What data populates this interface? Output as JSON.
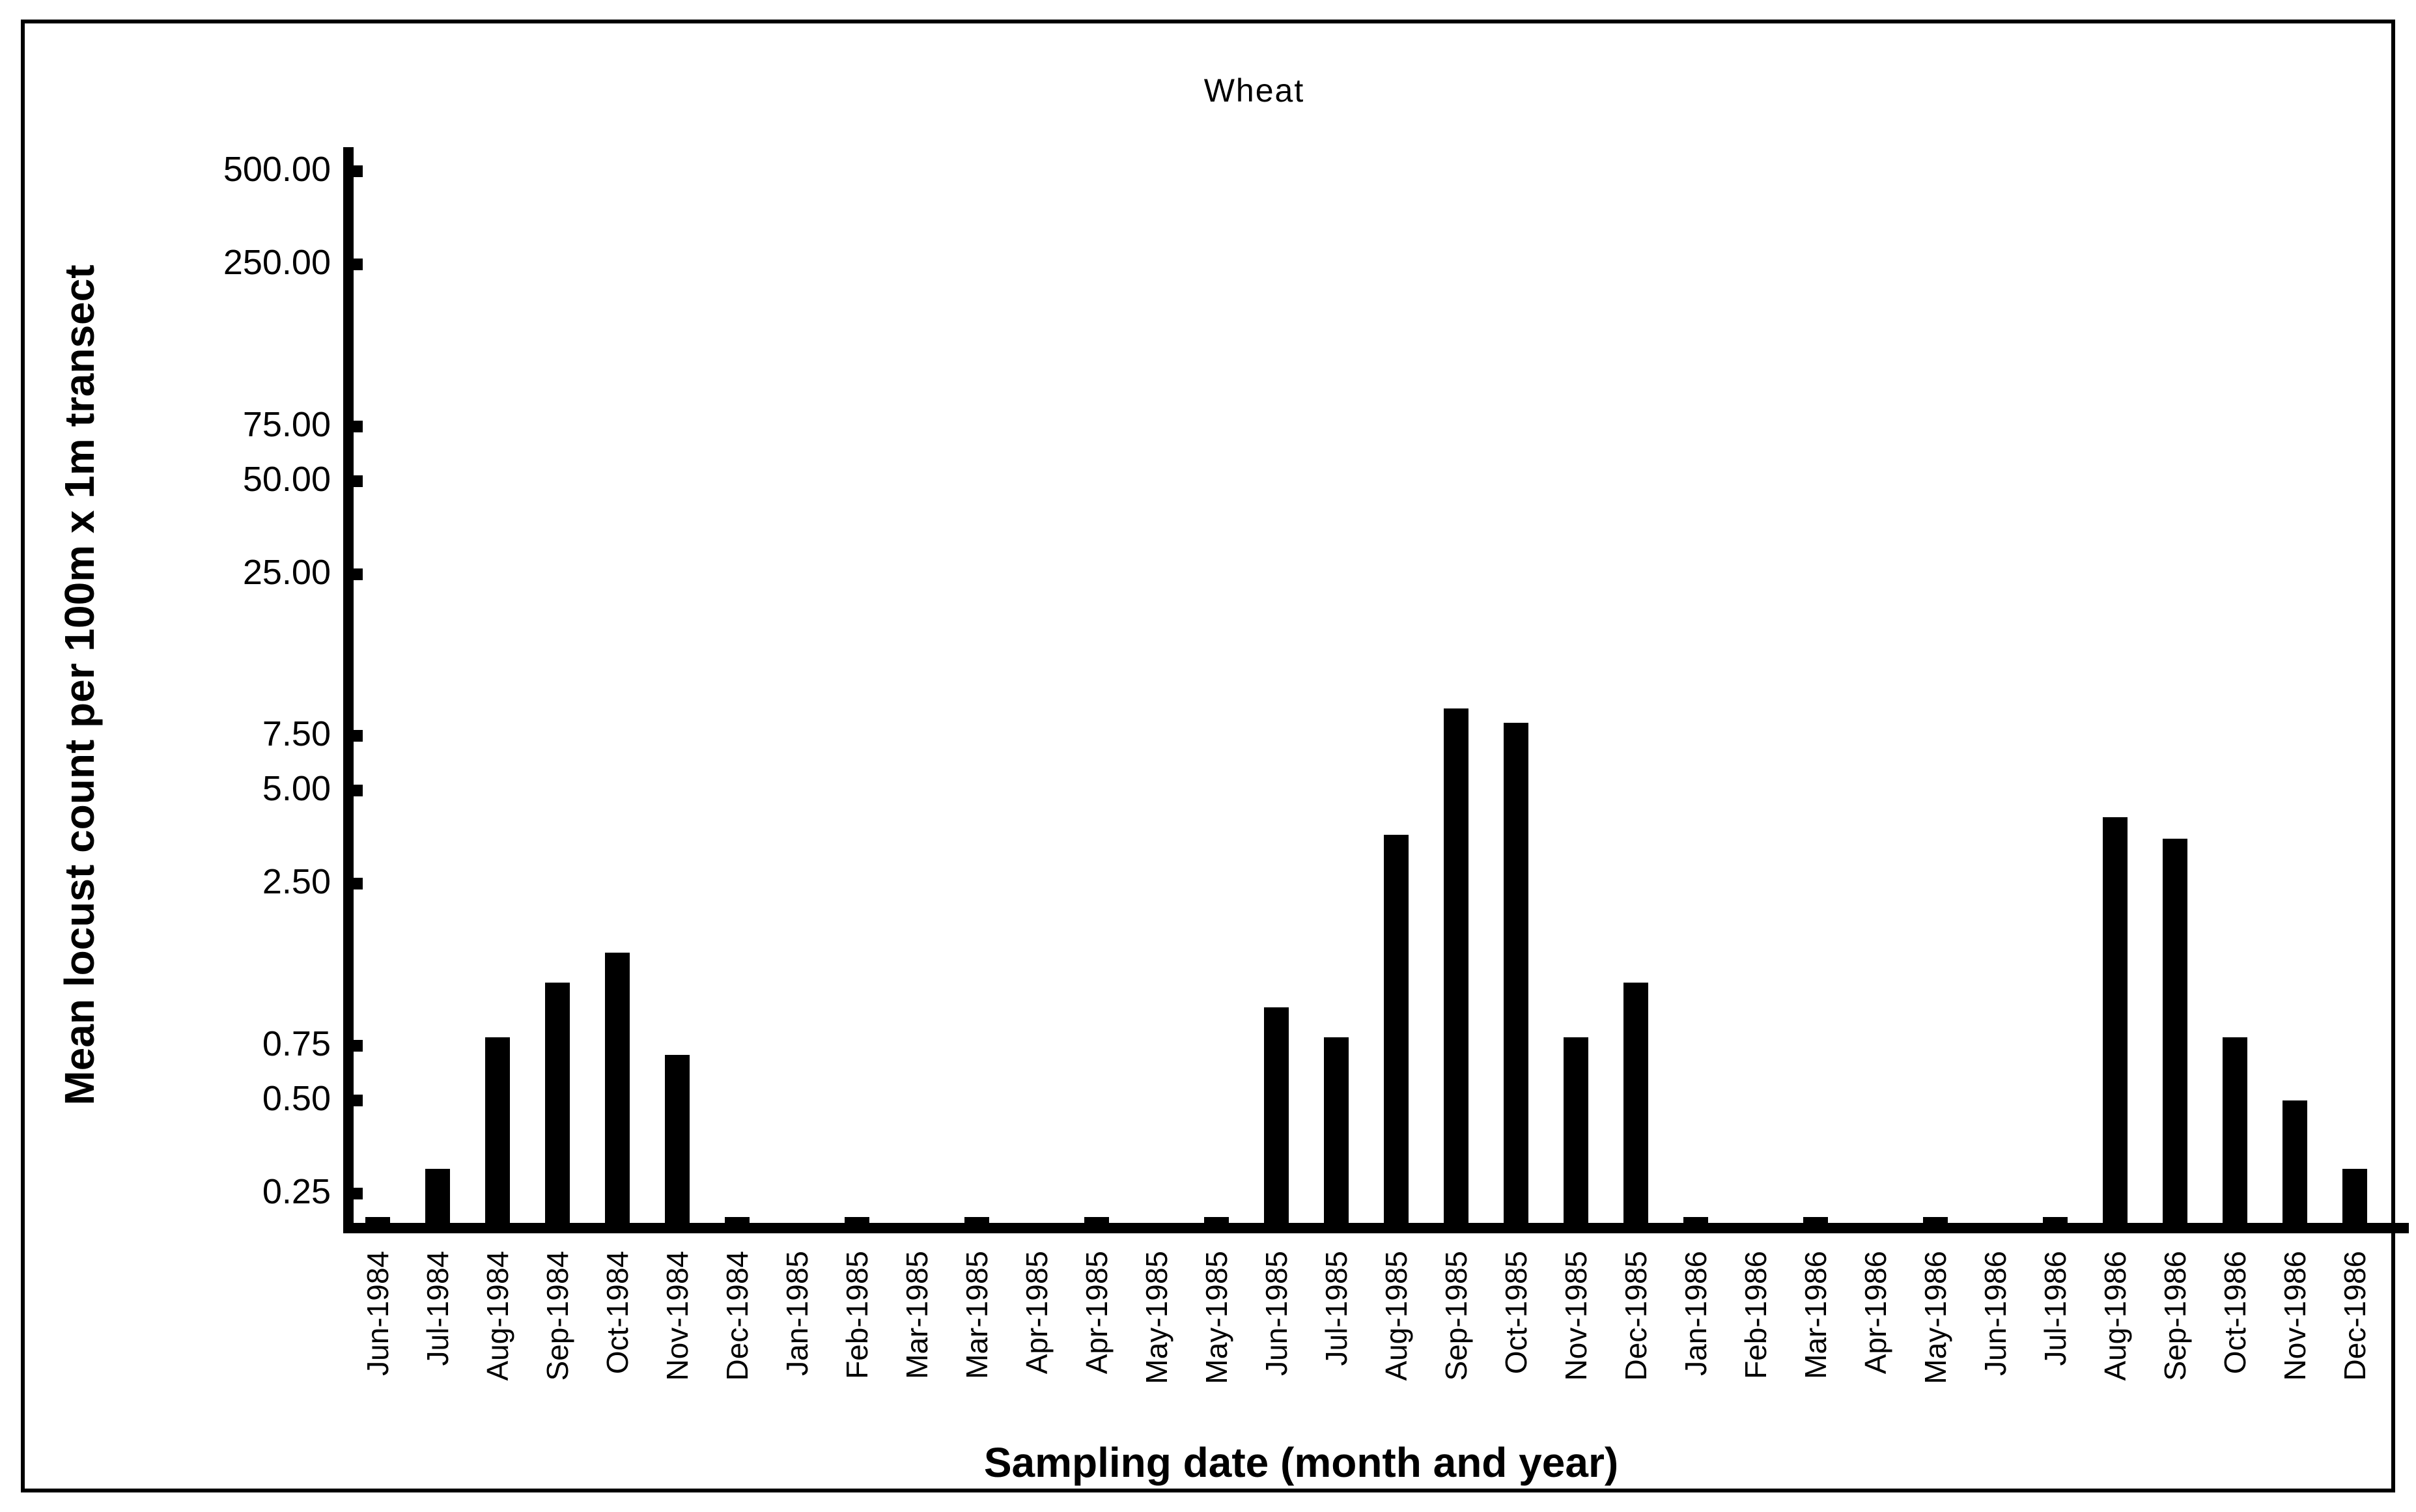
{
  "colors": {
    "foreground": "#000000",
    "background": "#ffffff",
    "bar_color": "#000000"
  },
  "chart_data": {
    "type": "bar",
    "title": "Wheat",
    "xlabel": "Sampling date (month and year)",
    "ylabel": "Mean locust count per 100m x 1m transect",
    "yscale": "log10",
    "ylim": [
      0.2,
      600
    ],
    "grid": false,
    "legend": "none",
    "ytick_values": [
      500,
      250,
      75,
      50,
      25,
      7.5,
      5,
      2.5,
      0.75,
      0.5,
      0.25
    ],
    "ytick_labels": [
      "500.00",
      "250.00",
      "75.00",
      "50.00",
      "25.00",
      "7.50",
      "5.00",
      "2.50",
      "0.75",
      "0.50",
      "0.25"
    ],
    "categories": [
      "Jun-1984",
      "Jul-1984",
      "Aug-1984",
      "Sep-1984",
      "Oct-1984",
      "Nov-1984",
      "Dec-1984",
      "Jan-1985",
      "Feb-1985",
      "Mar-1985",
      "Mar-1985",
      "Apr-1985",
      "Apr-1985",
      "May-1985",
      "May-1985",
      "Jun-1985",
      "Jul-1985",
      "Aug-1985",
      "Sep-1985",
      "Oct-1985",
      "Nov-1985",
      "Dec-1985",
      "Jan-1986",
      "Feb-1986",
      "Mar-1986",
      "Apr-1986",
      "May-1986",
      "Jun-1986",
      "Jul-1986",
      "Aug-1986",
      "Sep-1986",
      "Oct-1986",
      "Nov-1986",
      "Dec-1986"
    ],
    "values": [
      0.21,
      0.3,
      0.8,
      1.2,
      1.5,
      0.7,
      0.21,
      null,
      0.21,
      null,
      0.21,
      null,
      0.21,
      null,
      0.21,
      1.0,
      0.8,
      3.6,
      9.2,
      8.3,
      0.8,
      1.2,
      0.21,
      null,
      0.21,
      null,
      0.21,
      null,
      0.21,
      4.1,
      3.5,
      0.8,
      0.5,
      0.3
    ]
  }
}
